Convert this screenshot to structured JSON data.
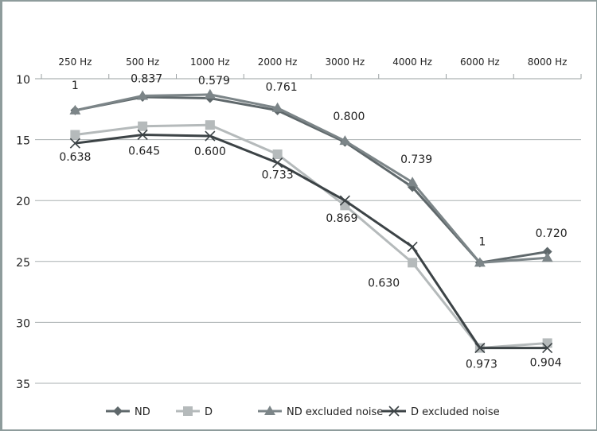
{
  "chart_data": {
    "type": "line",
    "title": "",
    "xlabel": "",
    "ylabel": "",
    "categories": [
      "250 Hz",
      "500 Hz",
      "1000 Hz",
      "2000 Hz",
      "3000 Hz",
      "4000 Hz",
      "6000 Hz",
      "8000 Hz"
    ],
    "ylim": [
      10,
      35
    ],
    "y_inverted": true,
    "y_ticks": [
      10,
      15,
      20,
      25,
      30,
      35
    ],
    "x_axis_position": "top",
    "grid": true,
    "legend_position": "bottom",
    "series": [
      {
        "name": "ND",
        "marker": "diamond",
        "color": "#5f686b",
        "values": [
          12.6,
          11.5,
          11.6,
          12.6,
          15.2,
          18.9,
          25.1,
          24.2
        ]
      },
      {
        "name": "D",
        "marker": "square",
        "color": "#b5babb",
        "values": [
          14.6,
          13.9,
          13.8,
          16.2,
          20.4,
          25.1,
          32.1,
          31.7
        ]
      },
      {
        "name": "ND excluded noise",
        "marker": "triangle",
        "color": "#7c8588",
        "values": [
          12.6,
          11.4,
          11.3,
          12.4,
          15.1,
          18.5,
          25.1,
          24.7
        ]
      },
      {
        "name": "D excluded noise",
        "marker": "x",
        "color": "#3c4346",
        "values": [
          15.3,
          14.6,
          14.7,
          16.9,
          20.0,
          23.8,
          32.1,
          32.1
        ]
      }
    ],
    "annotations_top": [
      "1",
      "0.837",
      "0.579",
      "0.761",
      "0.800",
      "0.739",
      "1",
      "0.720"
    ],
    "annotations_bottom": [
      "0.638",
      "0.645",
      "0.600",
      "0.733",
      "0.869",
      "0.630",
      "0.973",
      "0.904"
    ]
  }
}
